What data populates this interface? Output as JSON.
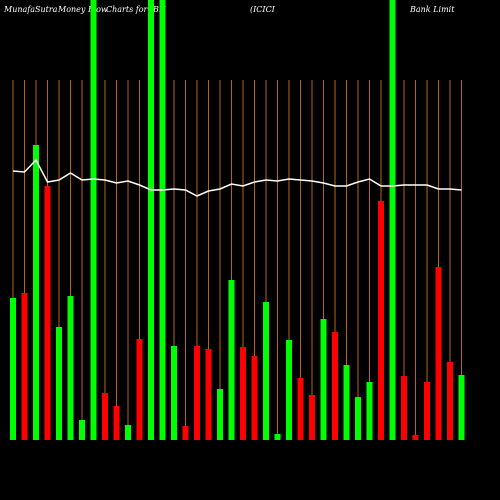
{
  "chart_data": {
    "type": "bar",
    "title_parts": [
      "MunafaSutra",
      "Money Flow",
      "Charts for IBN",
      "(ICICI",
      "Bank Limit"
    ],
    "values": [
      142,
      147,
      295,
      254,
      113,
      144,
      20,
      440,
      47,
      34,
      15,
      101,
      440,
      440,
      94,
      14,
      94,
      91,
      51,
      160,
      93,
      84,
      138,
      6,
      100,
      62,
      45,
      121,
      108,
      75,
      43,
      58,
      239,
      440,
      64,
      5,
      58,
      173,
      78,
      65
    ],
    "bar_colors": [
      "#00ff00",
      "#ff0000",
      "#00ff00",
      "#ff0000",
      "#00ff00",
      "#00ff00",
      "#00ff00",
      "#00ff00",
      "#ff0000",
      "#ff0000",
      "#00ff00",
      "#ff0000",
      "#00ff00",
      "#00ff00",
      "#00ff00",
      "#ff0000",
      "#ff0000",
      "#ff0000",
      "#00ff00",
      "#00ff00",
      "#ff0000",
      "#ff0000",
      "#00ff00",
      "#00ff00",
      "#00ff00",
      "#ff0000",
      "#ff0000",
      "#00ff00",
      "#ff0000",
      "#00ff00",
      "#00ff00",
      "#00ff00",
      "#ff0000",
      "#00ff00",
      "#ff0000",
      "#ff0000",
      "#ff0000",
      "#ff0000",
      "#ff0000",
      "#00ff00"
    ],
    "line_values": [
      269,
      268,
      280,
      258,
      260,
      267,
      260,
      261,
      260,
      257,
      259,
      255,
      250,
      250,
      251,
      250,
      244,
      249,
      251,
      256,
      254,
      258,
      260,
      259,
      261,
      260,
      259,
      257,
      254,
      254,
      258,
      261,
      254,
      254,
      255,
      255,
      255,
      251,
      251,
      250
    ],
    "line_color": "#ffffff",
    "grid_color": "#b8660b",
    "ylim": [
      0,
      440
    ]
  }
}
